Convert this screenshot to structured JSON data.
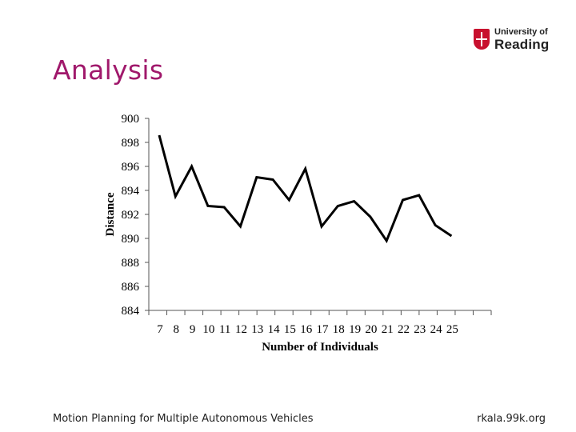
{
  "logo": {
    "line1": "University of",
    "line2": "Reading"
  },
  "slide_title": "Analysis",
  "footer": {
    "left": "Motion Planning for Multiple Autonomous Vehicles",
    "right": "rkala.99k.org"
  },
  "chart_data": {
    "type": "line",
    "categories": [
      "7",
      "8",
      "9",
      "10",
      "11",
      "12",
      "13",
      "14",
      "15",
      "16",
      "17",
      "18",
      "19",
      "20",
      "21",
      "22",
      "23",
      "24",
      "25"
    ],
    "series": [
      {
        "name": "Distance",
        "values": [
          898.6,
          893.5,
          896.0,
          892.7,
          892.6,
          891.0,
          895.1,
          894.9,
          893.2,
          895.8,
          891.0,
          892.7,
          893.1,
          891.8,
          889.8,
          893.2,
          893.6,
          891.1,
          890.2
        ]
      }
    ],
    "yticks": [
      "900",
      "898",
      "896",
      "894",
      "892",
      "890",
      "888",
      "886",
      "884"
    ],
    "ylim": [
      884,
      900
    ],
    "xlabel": "Number of Individuals",
    "ylabel": "Distance",
    "title": ""
  }
}
